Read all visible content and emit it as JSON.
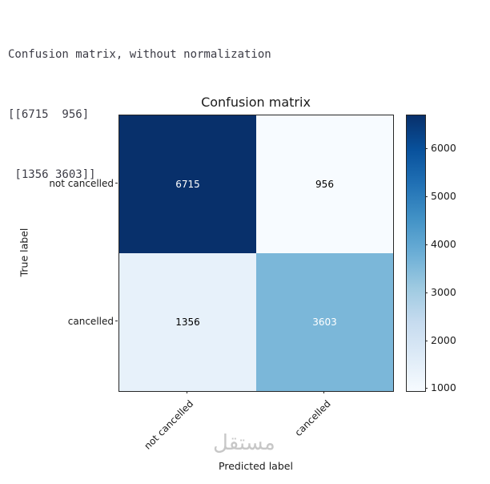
{
  "console": {
    "lines": [
      "Confusion matrix, without normalization",
      "[[6715  956]",
      " [1356 3603]]"
    ]
  },
  "chart_data": {
    "type": "heatmap",
    "title": "Confusion matrix",
    "xlabel": "Predicted label",
    "ylabel": "True label",
    "x_categories": [
      "not cancelled",
      "cancelled"
    ],
    "y_categories": [
      "not cancelled",
      "cancelled"
    ],
    "matrix": [
      [
        6715,
        956
      ],
      [
        1356,
        3603
      ]
    ],
    "vmin": 956,
    "vmax": 6715,
    "colormap": "Blues",
    "colormap_stops": [
      "#08306b",
      "#08519c",
      "#2171b5",
      "#4292c6",
      "#6baed6",
      "#9ecae1",
      "#c6dbef",
      "#deebf7",
      "#f7fbff"
    ],
    "colorbar_ticks": [
      1000,
      2000,
      3000,
      4000,
      5000,
      6000
    ],
    "colorbar_position": "right",
    "grid": false
  },
  "cell_styles": [
    [
      {
        "bg": "#08306b",
        "fg": "#ffffff"
      },
      {
        "bg": "#f7fbff",
        "fg": "#000000"
      }
    ],
    [
      {
        "bg": "#e7f1fa",
        "fg": "#000000"
      },
      {
        "bg": "#7bb7d9",
        "fg": "#ffffff"
      }
    ]
  ],
  "watermark": "مستقل"
}
